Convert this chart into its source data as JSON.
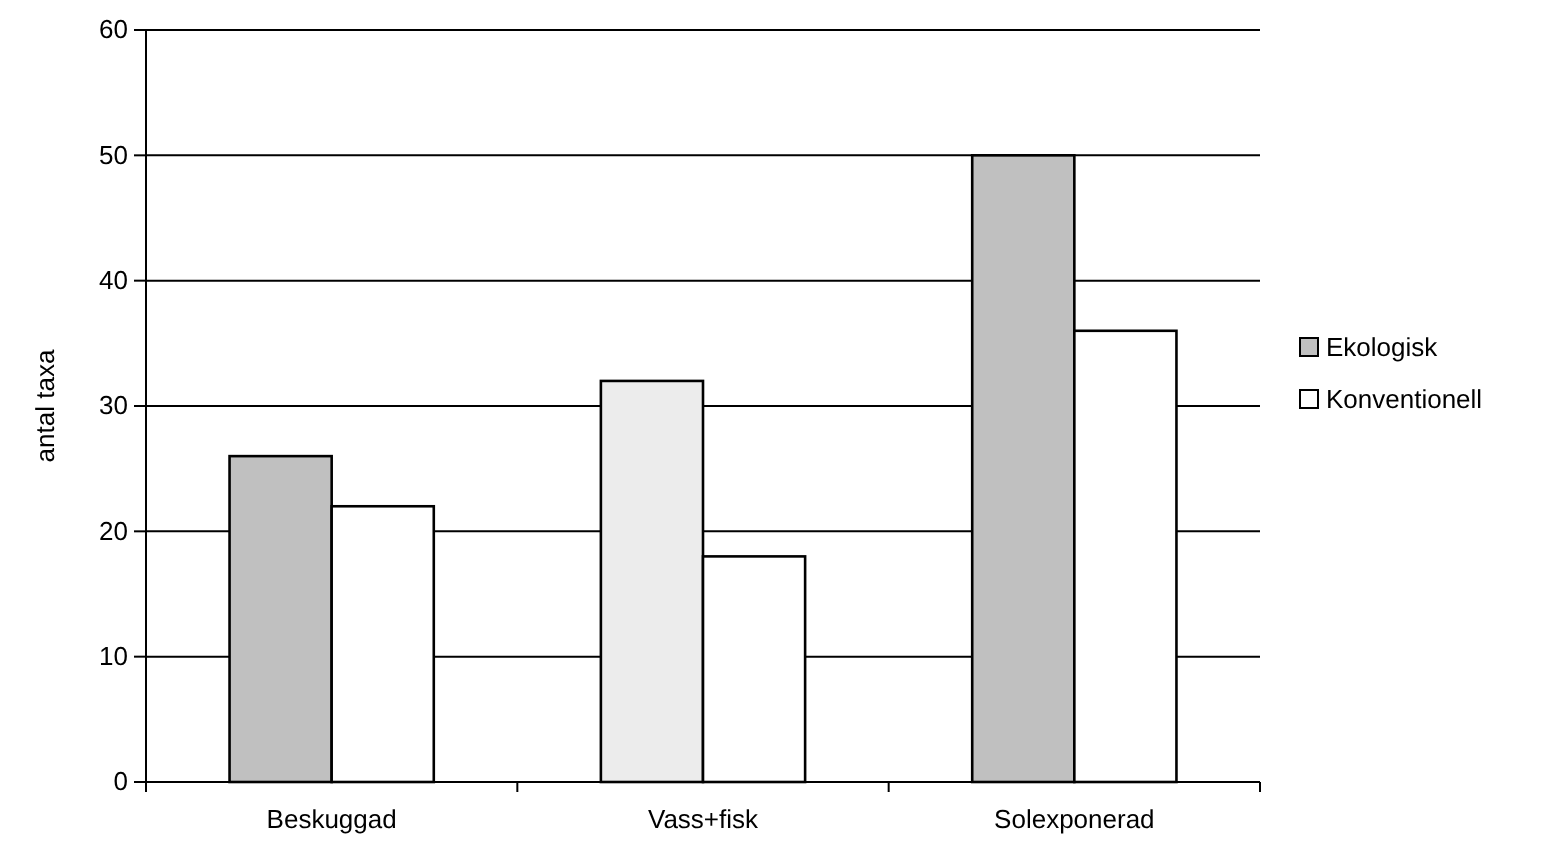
{
  "chart_data": {
    "type": "bar",
    "ylabel": "antal taxa",
    "categories": [
      "Beskuggad",
      "Vass+fisk",
      "Solexponerad"
    ],
    "series": [
      {
        "name": "Ekologisk",
        "color": "#c0c0c0",
        "colors": [
          "#c0c0c0",
          "#ececec",
          "#c0c0c0"
        ],
        "values": [
          26,
          32,
          50
        ]
      },
      {
        "name": "Konventionell",
        "color": "#ffffff",
        "values": [
          22,
          18,
          36
        ]
      }
    ],
    "ylim": [
      0,
      60
    ],
    "yticks": [
      0,
      10,
      20,
      30,
      40,
      50,
      60
    ],
    "grid": "y",
    "legend": "right"
  }
}
